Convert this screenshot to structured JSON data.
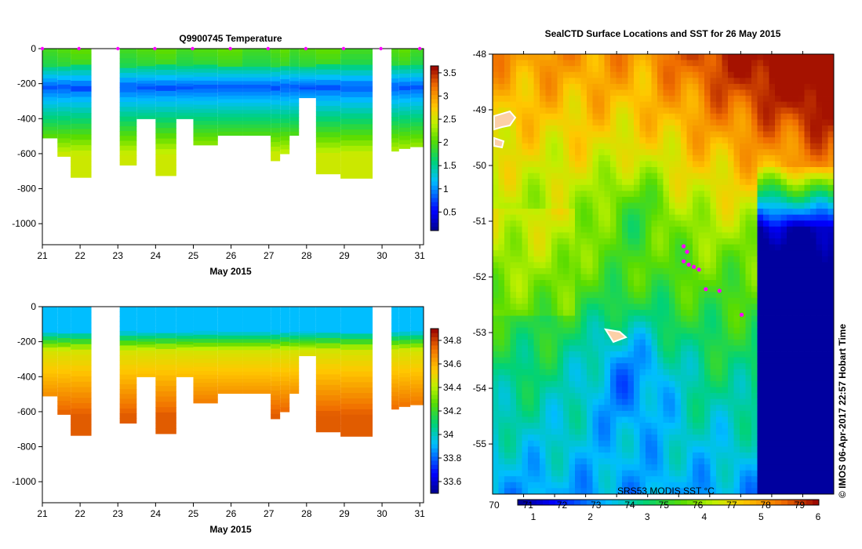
{
  "chart_data": [
    {
      "type": "heatmap",
      "title": "Q9900745  Temperature",
      "xlabel": "May 2015",
      "ylabel": "",
      "x_ticks": [
        "21",
        "22",
        "23",
        "24",
        "25",
        "26",
        "27",
        "28",
        "29",
        "30",
        "31"
      ],
      "y_ticks": [
        "0",
        "-200",
        "-400",
        "-600",
        "-800",
        "-1000"
      ],
      "ylim": [
        -1120,
        0
      ],
      "xlim": [
        21,
        31.1
      ],
      "colorbar_ticks": [
        "3.5",
        "3",
        "2.5",
        "2",
        "1.5",
        "1",
        "0.5"
      ],
      "colorbar_range": [
        0.1,
        3.65
      ],
      "profile_marker_days": [
        21,
        21.97,
        23.0,
        23.98,
        24.98,
        25.98,
        26.98,
        27.98,
        28.98,
        29.97,
        31.0
      ],
      "profiles": [
        {
          "x0": 21.0,
          "x1": 21.4,
          "max_depth": 510
        },
        {
          "x0": 21.4,
          "x1": 21.75,
          "max_depth": 615
        },
        {
          "x0": 21.75,
          "x1": 22.3,
          "max_depth": 735
        },
        {
          "x0": 23.05,
          "x1": 23.5,
          "max_depth": 665
        },
        {
          "x0": 23.5,
          "x1": 24.0,
          "max_depth": 400
        },
        {
          "x0": 24.0,
          "x1": 24.55,
          "max_depth": 725
        },
        {
          "x0": 24.55,
          "x1": 25.0,
          "max_depth": 400
        },
        {
          "x0": 25.0,
          "x1": 25.65,
          "max_depth": 550
        },
        {
          "x0": 25.65,
          "x1": 26.3,
          "max_depth": 495
        },
        {
          "x0": 26.3,
          "x1": 27.05,
          "max_depth": 495
        },
        {
          "x0": 27.05,
          "x1": 27.3,
          "max_depth": 640
        },
        {
          "x0": 27.3,
          "x1": 27.55,
          "max_depth": 600
        },
        {
          "x0": 27.55,
          "x1": 27.8,
          "max_depth": 495
        },
        {
          "x0": 27.8,
          "x1": 28.25,
          "max_depth": 280
        },
        {
          "x0": 28.25,
          "x1": 28.9,
          "max_depth": 715
        },
        {
          "x0": 28.9,
          "x1": 29.75,
          "max_depth": 740
        },
        {
          "x0": 30.25,
          "x1": 30.45,
          "max_depth": 585
        },
        {
          "x0": 30.45,
          "x1": 30.75,
          "max_depth": 570
        },
        {
          "x0": 30.75,
          "x1": 31.1,
          "max_depth": 560
        }
      ]
    },
    {
      "type": "heatmap",
      "title": "",
      "xlabel": "May 2015",
      "ylabel": "",
      "x_ticks": [
        "21",
        "22",
        "23",
        "24",
        "25",
        "26",
        "27",
        "28",
        "29",
        "30",
        "31"
      ],
      "y_ticks": [
        "0",
        "-200",
        "-400",
        "-600",
        "-800",
        "-1000"
      ],
      "ylim": [
        -1120,
        0
      ],
      "xlim": [
        21,
        31.1
      ],
      "colorbar_ticks": [
        "34.8",
        "34.6",
        "34.4",
        "34.2",
        "34",
        "33.8",
        "33.6"
      ],
      "colorbar_range": [
        33.5,
        34.9
      ]
    },
    {
      "type": "heatmap",
      "title": "SealCTD Surface Locations and SST for 26 May 2015",
      "xlabel": "",
      "ylabel": "",
      "y_ticks": [
        "-48",
        "-49",
        "-50",
        "-51",
        "-52",
        "-53",
        "-54",
        "-55"
      ],
      "ylim": [
        -55.9,
        -48
      ],
      "colorbar_ticks_top": [
        "70",
        "71",
        "72",
        "73",
        "74",
        "75",
        "76",
        "77",
        "78",
        "79"
      ],
      "colorbar_ticks_bottom": [
        "1",
        "2",
        "3",
        "4",
        "5",
        "6"
      ],
      "colorbar_label": "SRS53 MODIS SST °C",
      "seal_surface_locations": [
        {
          "lat": -51.45,
          "lon_frac": 0.56
        },
        {
          "lat": -51.55,
          "lon_frac": 0.57
        },
        {
          "lat": -51.72,
          "lon_frac": 0.56
        },
        {
          "lat": -51.78,
          "lon_frac": 0.575
        },
        {
          "lat": -51.82,
          "lon_frac": 0.59
        },
        {
          "lat": -51.87,
          "lon_frac": 0.605
        },
        {
          "lat": -52.22,
          "lon_frac": 0.625
        },
        {
          "lat": -52.25,
          "lon_frac": 0.665
        },
        {
          "lat": -52.68,
          "lon_frac": 0.73
        }
      ]
    }
  ],
  "credit": "© IMOS 06-Apr-2017 22:57 Hobart Time"
}
